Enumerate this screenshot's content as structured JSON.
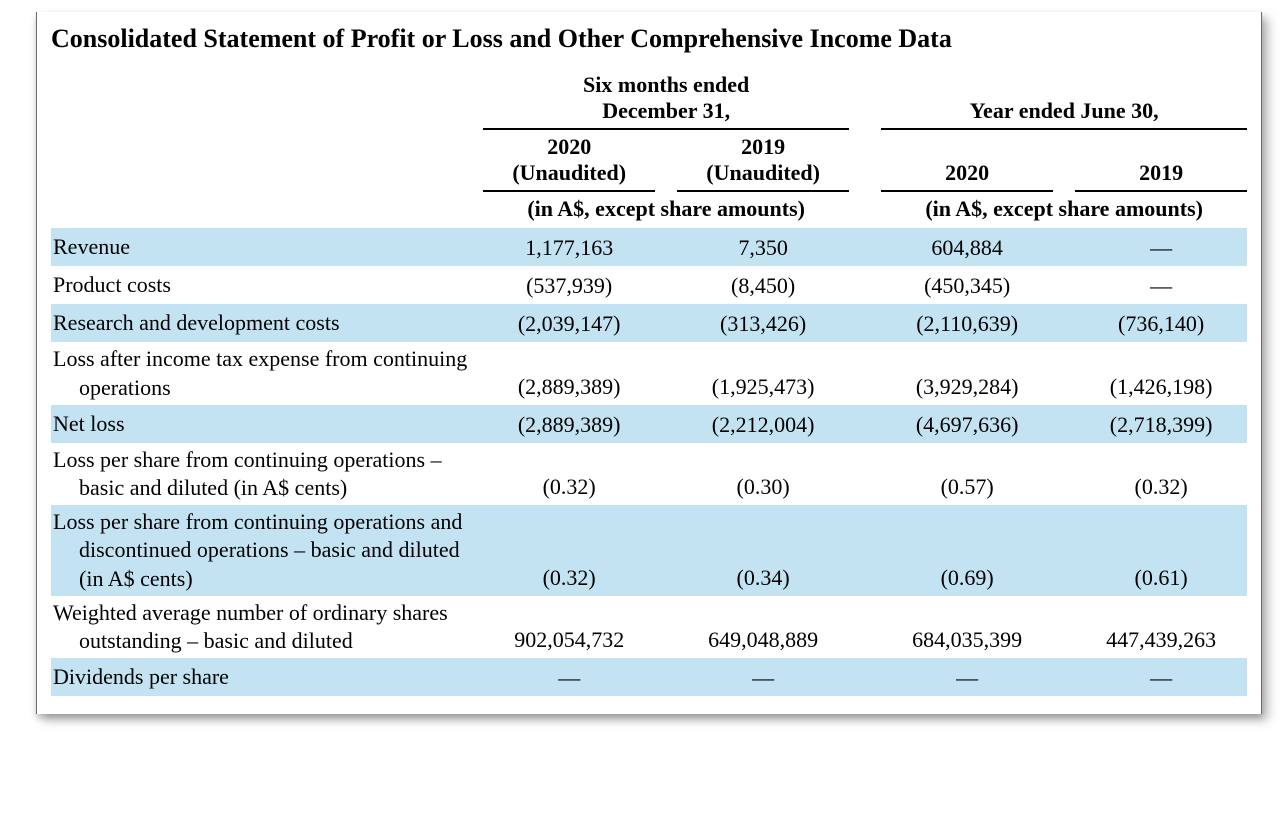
{
  "title": "Consolidated Statement of Profit or Loss and Other Comprehensive Income Data",
  "period_headers": {
    "left_group": "Six months ended December 31,",
    "right_group": "Year ended June 30,",
    "col1": "2020 (Unaudited)",
    "col2": "2019 (Unaudited)",
    "col3": "2020",
    "col4": "2019",
    "unit_left": "(in A$, except share amounts)",
    "unit_right": "(in A$, except share amounts)"
  },
  "rows": [
    {
      "label": "Revenue",
      "v": [
        "1,177,163",
        "7,350",
        "604,884",
        "—"
      ],
      "striped": true
    },
    {
      "label": "Product costs",
      "v": [
        "(537,939)",
        "(8,450)",
        "(450,345)",
        "—"
      ],
      "striped": false
    },
    {
      "label": "Research and development costs",
      "v": [
        "(2,039,147)",
        "(313,426)",
        "(2,110,639)",
        "(736,140)"
      ],
      "striped": true
    },
    {
      "label": "Loss after income tax expense from continuing operations",
      "v": [
        "(2,889,389)",
        "(1,925,473)",
        "(3,929,284)",
        "(1,426,198)"
      ],
      "striped": false,
      "twoLine": true
    },
    {
      "label": "Net loss",
      "v": [
        "(2,889,389)",
        "(2,212,004)",
        "(4,697,636)",
        "(2,718,399)"
      ],
      "striped": true
    },
    {
      "label": "Loss per share from continuing operations – basic and diluted (in A$ cents)",
      "v": [
        "(0.32)",
        "(0.30)",
        "(0.57)",
        "(0.32)"
      ],
      "striped": false,
      "twoLine": true
    },
    {
      "label": "Loss per share from continuing operations and discontinued operations – basic and diluted (in A$ cents)",
      "v": [
        "(0.32)",
        "(0.34)",
        "(0.69)",
        "(0.61)"
      ],
      "striped": true,
      "twoLine": true
    },
    {
      "label": "Weighted average number of ordinary shares outstanding – basic and diluted",
      "v": [
        "902,054,732",
        "649,048,889",
        "684,035,399",
        "447,439,263"
      ],
      "striped": false,
      "twoLine": true
    },
    {
      "label": "Dividends per share",
      "v": [
        "—",
        "—",
        "—",
        "—"
      ],
      "striped": true
    }
  ],
  "colors": {
    "stripe": "#c3e3f2",
    "rule": "#000000",
    "panel_border": "#6b6b6b"
  }
}
